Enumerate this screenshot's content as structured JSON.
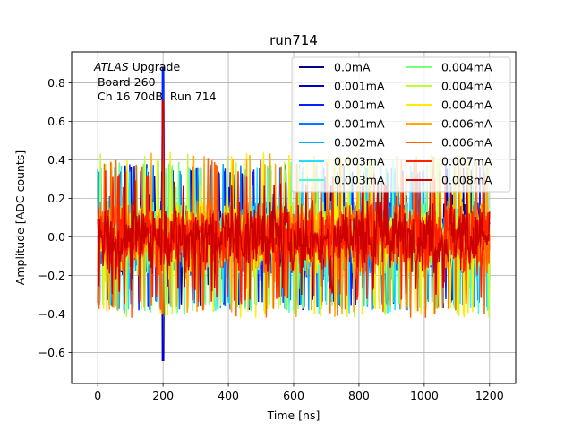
{
  "chart_data": {
    "type": "line",
    "title": "run714",
    "xlabel": "Time [ns]",
    "ylabel": "Amplitude [ADC counts]",
    "xlim": [
      -80,
      1280
    ],
    "ylim": [
      -0.76,
      0.96
    ],
    "x_ticks": [
      0,
      200,
      400,
      600,
      800,
      1000,
      1200
    ],
    "y_ticks": [
      -0.6,
      -0.4,
      -0.2,
      0.0,
      0.2,
      0.4,
      0.6,
      0.8
    ],
    "x_tick_labels": [
      "0",
      "200",
      "400",
      "600",
      "800",
      "1000",
      "1200"
    ],
    "y_tick_labels": [
      "−0.6",
      "−0.4",
      "−0.2",
      "0.0",
      "0.2",
      "0.4",
      "0.6",
      "0.8"
    ],
    "grid": true,
    "legend_position": "top-right",
    "legend_columns": 2,
    "annotation": {
      "line1_italic": "ATLAS",
      "line1_rest": " Upgrade",
      "line2": " Board 260",
      "line3": " Ch 16 70dB  Run 714"
    },
    "series": [
      {
        "name": "0.0mA",
        "color": "#00008b",
        "envelope": [
          -0.36,
          0.36
        ]
      },
      {
        "name": "0.001mA",
        "color": "#0000cd",
        "envelope": [
          -0.38,
          0.38
        ]
      },
      {
        "name": "0.001mA",
        "color": "#0022ff",
        "envelope": [
          -0.38,
          0.38
        ]
      },
      {
        "name": "0.001mA",
        "color": "#0077ff",
        "envelope": [
          -0.38,
          0.38
        ]
      },
      {
        "name": "0.002mA",
        "color": "#00aaff",
        "envelope": [
          -0.38,
          0.38
        ]
      },
      {
        "name": "0.003mA",
        "color": "#22ddff",
        "envelope": [
          -0.4,
          0.38
        ]
      },
      {
        "name": "0.003mA",
        "color": "#44ffcc",
        "envelope": [
          -0.4,
          0.4
        ]
      },
      {
        "name": "0.004mA",
        "color": "#77ff77",
        "envelope": [
          -0.4,
          0.4
        ]
      },
      {
        "name": "0.004mA",
        "color": "#bbff33",
        "envelope": [
          -0.42,
          0.44
        ]
      },
      {
        "name": "0.004mA",
        "color": "#ffee00",
        "envelope": [
          -0.42,
          0.44
        ]
      },
      {
        "name": "0.006mA",
        "color": "#ffaa00",
        "envelope": [
          -0.42,
          0.44
        ]
      },
      {
        "name": "0.006mA",
        "color": "#ff6600",
        "envelope": [
          -0.42,
          0.42
        ]
      },
      {
        "name": "0.007mA",
        "color": "#ff2200",
        "envelope": [
          -0.35,
          0.35
        ]
      },
      {
        "name": "0.008mA",
        "color": "#cc0000",
        "envelope": [
          -0.3,
          0.3
        ]
      }
    ],
    "x_range": [
      0,
      1200
    ],
    "peak": {
      "x": 200,
      "y": 0.88
    }
  }
}
